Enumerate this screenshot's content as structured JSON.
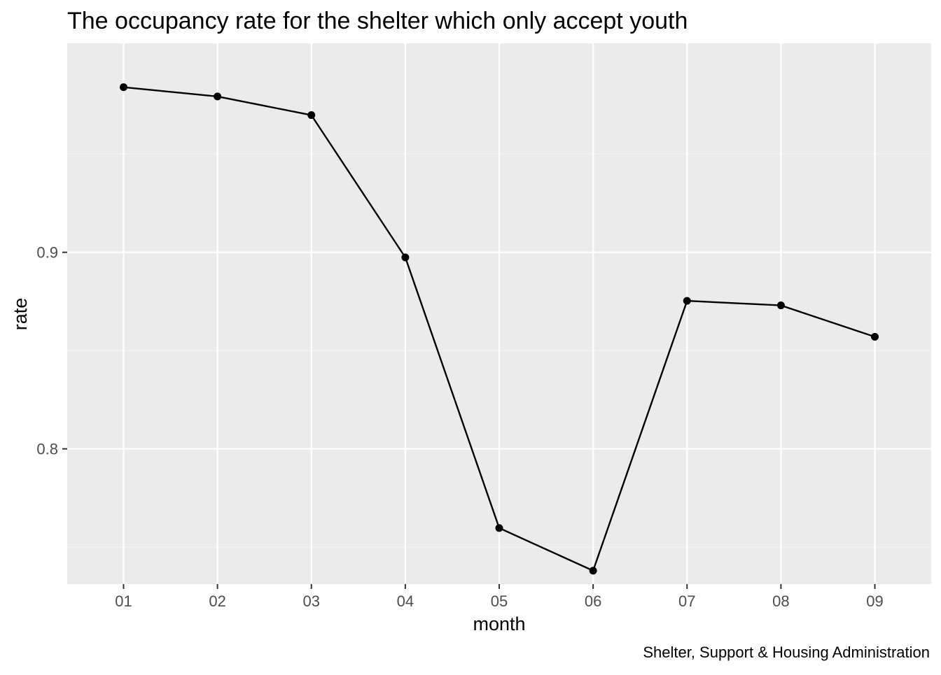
{
  "chart_data": {
    "type": "line",
    "title": "The occupancy rate for the shelter which only accept youth",
    "xlabel": "month",
    "ylabel": "rate",
    "caption": "Shelter, Support & Housing Administration",
    "categories": [
      "01",
      "02",
      "03",
      "04",
      "05",
      "06",
      "07",
      "08",
      "09"
    ],
    "values": [
      0.984,
      0.9793,
      0.9698,
      0.8974,
      0.7597,
      0.738,
      0.8753,
      0.873,
      0.857
    ],
    "ylim": [
      0.7312,
      1.0063
    ],
    "y_ticks": [
      0.8,
      0.9
    ],
    "y_tick_labels": [
      "0.8",
      "0.9"
    ],
    "points_shown": true,
    "grid": true,
    "legend": "none",
    "colors": {
      "panel_background": "#ebebeb",
      "grid_major": "#ffffff",
      "grid_minor": "#f5f5f5",
      "line": "#000000",
      "points": "#000000",
      "tick_text": "#4d4d4d",
      "tick_marks": "#333333"
    }
  }
}
